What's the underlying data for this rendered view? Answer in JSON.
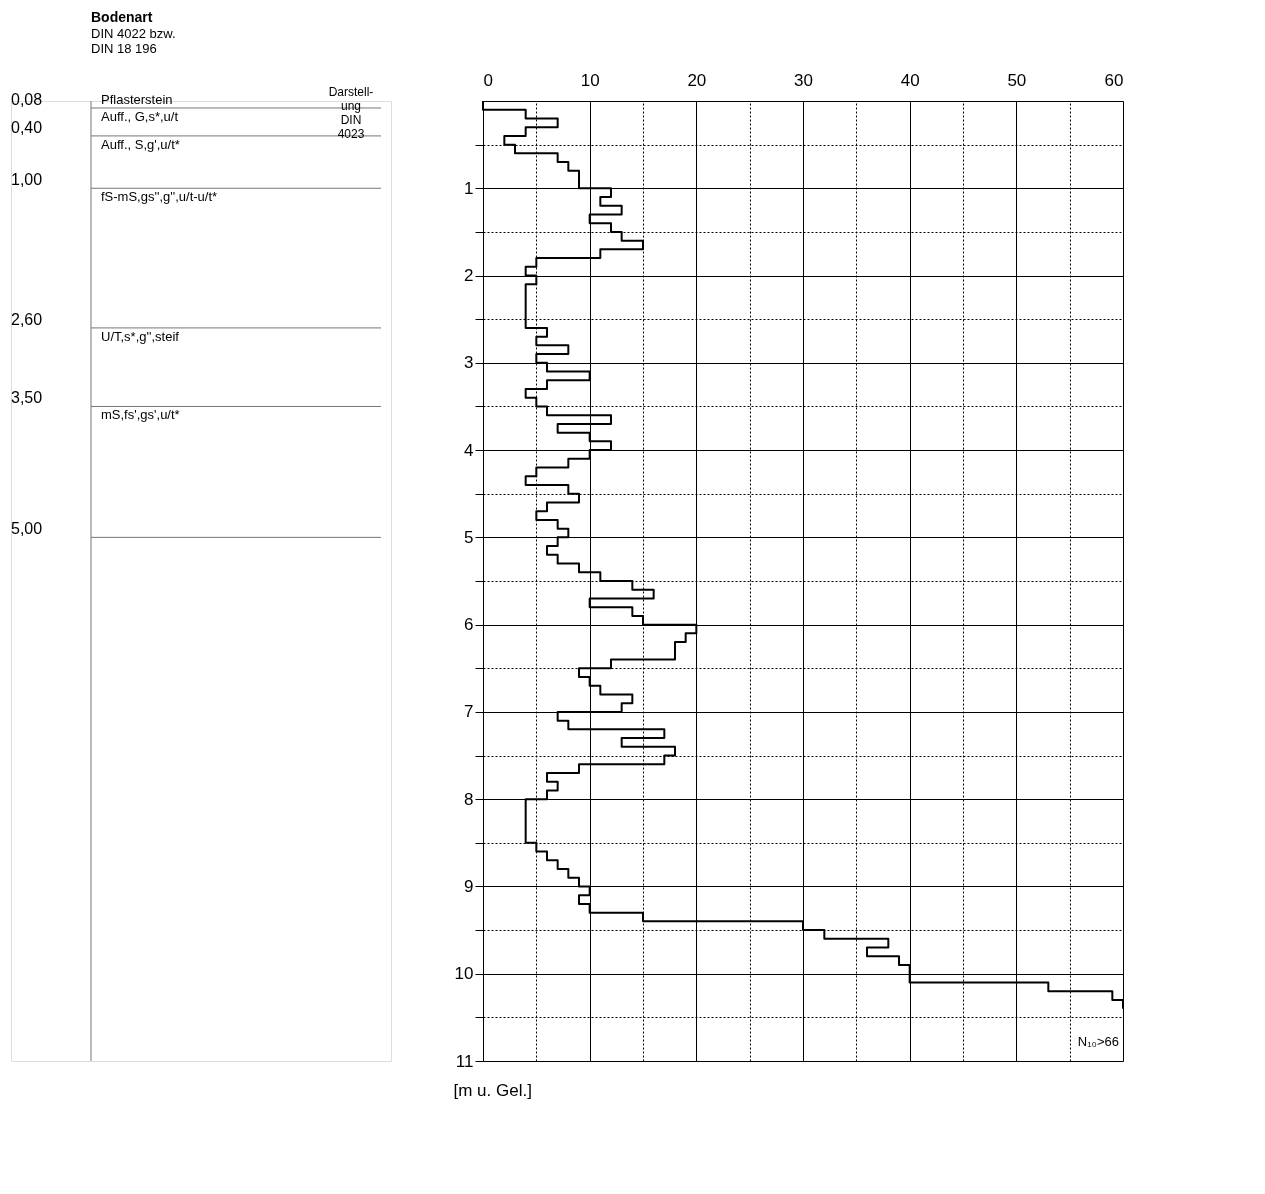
{
  "chart_data": [
    {
      "type": "other",
      "title": "Bodenart",
      "subtitle": "DIN 4022 bzw.\nDIN 18 196",
      "annotations": [
        "Darstell-\nung\nDIN\n4023",
        "Pflasterstein",
        "0,08",
        "Auff., G,s*,u/t",
        "0,40",
        "Auff., S,g',u/t*",
        "1,00",
        "fS-mS,gs'',g'',u/t-u/t*",
        "2,60",
        "U/T,s*,g'',steif",
        "3,50",
        "mS,fs',gs',u/t*",
        "5,00"
      ]
    },
    {
      "type": "step",
      "orientation": "horizontal",
      "color": "#000000",
      "grid": true,
      "ylabel": "[m u. Gel.]",
      "x": [
        0.0,
        0.1,
        0.2,
        0.3,
        0.4,
        0.5,
        0.6,
        0.7,
        0.8,
        0.9,
        1.0,
        1.1,
        1.2,
        1.3,
        1.4,
        1.5,
        1.6,
        1.7,
        1.8,
        1.9,
        2.0,
        2.1,
        2.2,
        2.3,
        2.4,
        2.5,
        2.6,
        2.7,
        2.8,
        2.9,
        3.0,
        3.1,
        3.2,
        3.3,
        3.4,
        3.5,
        3.6,
        3.7,
        3.8,
        3.9,
        4.0,
        4.1,
        4.2,
        4.3,
        4.4,
        4.5,
        4.6,
        4.7,
        4.8,
        4.9,
        5.0,
        5.1,
        5.2,
        5.3,
        5.4,
        5.5,
        5.6,
        5.7,
        5.8,
        5.9,
        6.0,
        6.1,
        6.2,
        6.3,
        6.4,
        6.5,
        6.6,
        6.7,
        6.8,
        6.9,
        7.0,
        7.1,
        7.2,
        7.3,
        7.4,
        7.5,
        7.6,
        7.7,
        7.8,
        7.9,
        8.0,
        8.1,
        8.2,
        8.3,
        8.4,
        8.5,
        8.6,
        8.7,
        8.8,
        8.9,
        9.0,
        9.1,
        9.2,
        9.3,
        9.4,
        9.5,
        9.6,
        9.7,
        9.8,
        9.9,
        10.0,
        10.1,
        10.2,
        10.3,
        10.4
      ],
      "values": [
        0,
        4,
        7,
        4,
        2,
        3,
        7,
        8,
        9,
        9,
        12,
        11,
        13,
        10,
        12,
        13,
        15,
        11,
        5,
        4,
        5,
        4,
        4,
        4,
        4,
        4,
        6,
        5,
        8,
        5,
        6,
        10,
        6,
        4,
        5,
        6,
        12,
        7,
        10,
        12,
        10,
        8,
        5,
        4,
        8,
        9,
        6,
        5,
        7,
        8,
        7,
        6,
        7,
        9,
        11,
        14,
        16,
        10,
        14,
        15,
        20,
        19,
        18,
        18,
        12,
        9,
        10,
        11,
        14,
        13,
        7,
        8,
        17,
        13,
        18,
        17,
        9,
        6,
        7,
        6,
        4,
        4,
        4,
        4,
        4,
        5,
        6,
        7,
        8,
        9,
        10,
        9,
        10,
        15,
        30,
        32,
        38,
        36,
        39,
        40,
        40,
        53,
        59,
        60,
        60
      ],
      "xlim": [
        0,
        60
      ],
      "xticks": [
        0,
        {
          "value": 5,
          "label": null
        },
        10,
        {
          "value": 15,
          "label": null
        },
        20,
        {
          "value": 25,
          "label": null
        },
        30,
        {
          "value": 35,
          "label": null
        },
        40,
        {
          "value": 45,
          "label": null
        },
        50,
        {
          "value": 55,
          "label": null
        },
        60
      ],
      "ylim": [
        11,
        0
      ],
      "yticks": [
        {
          "value": 0.5,
          "label": null
        },
        1,
        {
          "value": 1.5,
          "label": null
        },
        2,
        {
          "value": 2.5,
          "label": null
        },
        3,
        {
          "value": 3.5,
          "label": null
        },
        4,
        {
          "value": 4.5,
          "label": null
        },
        5,
        {
          "value": 5.5,
          "label": null
        },
        6,
        {
          "value": 6.5,
          "label": null
        },
        7,
        {
          "value": 7.5,
          "label": null
        },
        8,
        {
          "value": 8.5,
          "label": null
        },
        9,
        {
          "value": 9.5,
          "label": null
        },
        10,
        {
          "value": 10.5,
          "label": null
        },
        11
      ],
      "annotations": [
        "N₁₀>66"
      ]
    }
  ]
}
